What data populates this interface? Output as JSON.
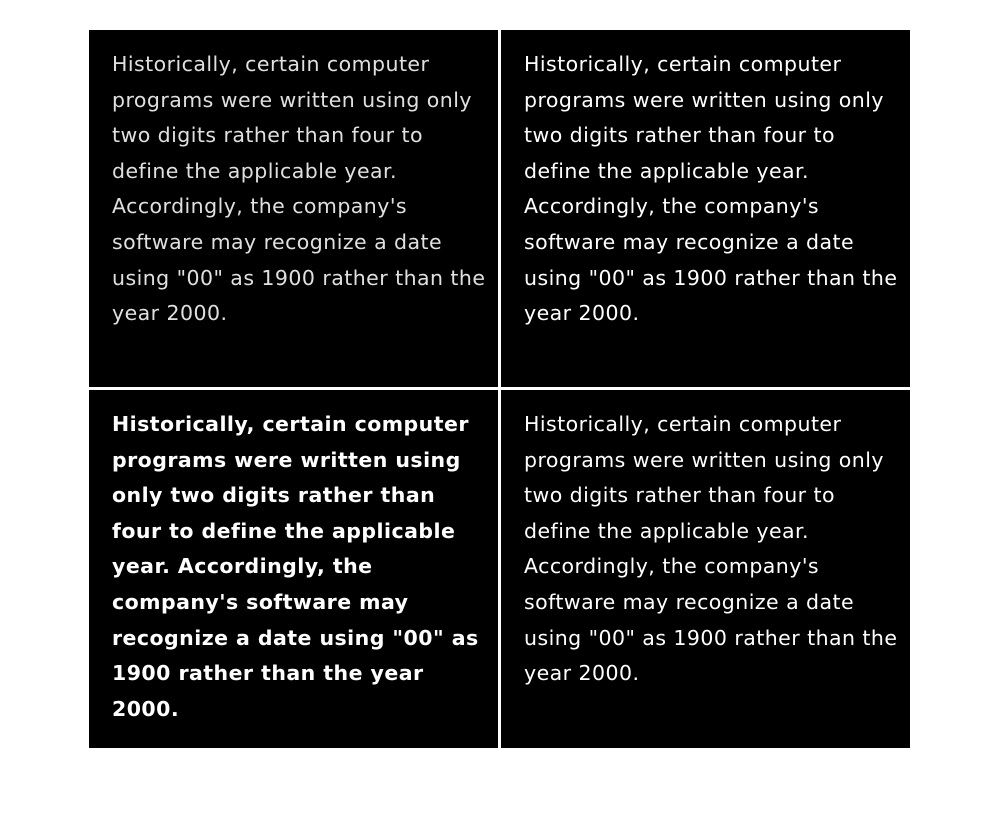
{
  "panels": [
    {
      "text": "Historically, certain computer programs were written using only two digits rather than four to define the applicable year. Accordingly, the company's software may recognize a date using \"00\" as 1900 rather than the year 2000."
    },
    {
      "text": "Historically, certain computer programs were written using only two digits rather than four to define the applicable year. Accordingly, the company's software may recognize a date using \"00\" as 1900 rather than the year 2000."
    },
    {
      "text": "Historically, certain computer programs were written using only two digits rather than four to define the applicable year. Accordingly, the company's software may recognize a date using \"00\" as 1900 rather than the year 2000."
    },
    {
      "text": "Historically, certain computer programs were written using only two digits rather than four to define the applicable year. Accordingly, the company's software may recognize a date using \"00\" as 1900 rather than the year 2000."
    }
  ],
  "colors": {
    "panel_background": "#000000",
    "text": "#ffffff",
    "divider": "#ffffff"
  }
}
